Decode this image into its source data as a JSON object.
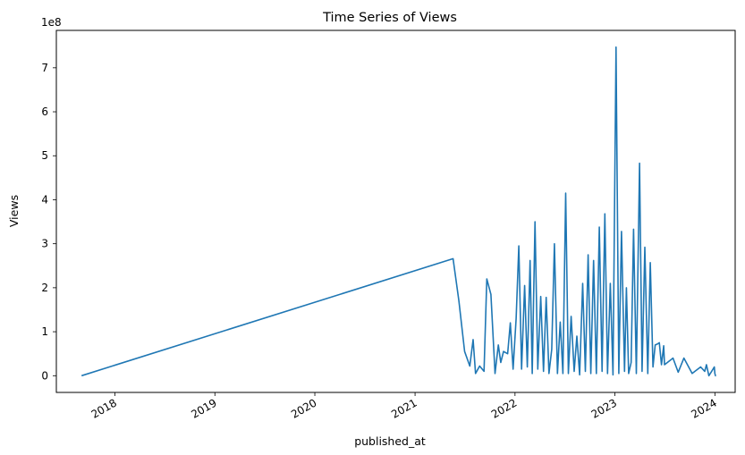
{
  "chart_data": {
    "type": "line",
    "title": "Time Series of Views",
    "xlabel": "published_at",
    "ylabel": "Views",
    "y_offset_label": "1e8",
    "y_scale_note": "values are in units of 1e8",
    "xlim": [
      "2017-06-01",
      "2024-03-15"
    ],
    "ylim": [
      -0.38,
      7.85
    ],
    "x_ticks": [
      "2018",
      "2019",
      "2020",
      "2021",
      "2022",
      "2023",
      "2024"
    ],
    "y_ticks": [
      0,
      1,
      2,
      3,
      4,
      5,
      6,
      7
    ],
    "grid": false,
    "line_color": "#1f77b4",
    "series": [
      {
        "x": [
          "2017-09-01",
          "2021-05-20",
          "2021-06-10",
          "2021-07-01",
          "2021-07-20",
          "2021-08-01",
          "2021-08-10",
          "2021-08-25",
          "2021-09-10",
          "2021-09-20",
          "2021-10-05",
          "2021-10-20",
          "2021-11-01",
          "2021-11-10",
          "2021-11-20",
          "2021-12-05",
          "2021-12-15",
          "2021-12-25",
          "2022-01-05",
          "2022-01-15",
          "2022-01-25",
          "2022-02-05",
          "2022-02-15",
          "2022-02-25",
          "2022-03-05",
          "2022-03-15",
          "2022-03-25",
          "2022-04-05",
          "2022-04-15",
          "2022-04-25",
          "2022-05-05",
          "2022-05-15",
          "2022-05-25",
          "2022-06-05",
          "2022-06-15",
          "2022-06-25",
          "2022-07-05",
          "2022-07-15",
          "2022-07-25",
          "2022-08-05",
          "2022-08-15",
          "2022-08-25",
          "2022-09-05",
          "2022-09-15",
          "2022-09-25",
          "2022-10-05",
          "2022-10-15",
          "2022-10-25",
          "2022-11-05",
          "2022-11-15",
          "2022-11-25",
          "2022-12-05",
          "2022-12-15",
          "2022-12-25",
          "2023-01-05",
          "2023-01-15",
          "2023-01-25",
          "2023-02-05",
          "2023-02-12",
          "2023-02-20",
          "2023-03-01",
          "2023-03-10",
          "2023-03-20",
          "2023-04-01",
          "2023-04-10",
          "2023-04-20",
          "2023-05-01",
          "2023-05-10",
          "2023-05-20",
          "2023-05-28",
          "2023-06-05",
          "2023-06-12",
          "2023-06-20",
          "2023-06-28",
          "2023-07-01",
          "2023-08-01",
          "2023-08-20",
          "2023-09-10",
          "2023-10-10",
          "2023-11-10",
          "2023-11-25",
          "2023-12-01",
          "2023-12-10",
          "2023-12-20",
          "2023-12-30",
          "2024-01-01",
          "2024-01-03",
          "2024-01-05"
        ],
        "y": [
          0.0,
          2.66,
          1.7,
          0.55,
          0.22,
          0.82,
          0.05,
          0.22,
          0.1,
          2.2,
          1.85,
          0.05,
          0.7,
          0.3,
          0.55,
          0.5,
          1.2,
          0.15,
          1.3,
          2.95,
          0.15,
          2.05,
          0.2,
          2.62,
          0.05,
          3.5,
          0.15,
          1.8,
          0.1,
          1.78,
          0.05,
          0.6,
          3.0,
          0.05,
          1.22,
          0.05,
          4.15,
          0.05,
          1.35,
          0.1,
          0.9,
          0.02,
          2.1,
          0.1,
          2.75,
          0.05,
          2.62,
          0.05,
          3.38,
          0.1,
          3.68,
          0.05,
          2.1,
          0.02,
          7.47,
          0.05,
          3.28,
          0.1,
          2.0,
          0.05,
          0.3,
          3.33,
          0.05,
          4.83,
          0.1,
          2.92,
          0.05,
          2.57,
          0.2,
          0.7,
          0.72,
          0.75,
          0.25,
          0.68,
          0.25,
          0.4,
          0.08,
          0.4,
          0.05,
          0.2,
          0.1,
          0.25,
          0.0,
          0.1,
          0.2,
          0.05,
          0.0,
          0.0
        ]
      }
    ]
  }
}
